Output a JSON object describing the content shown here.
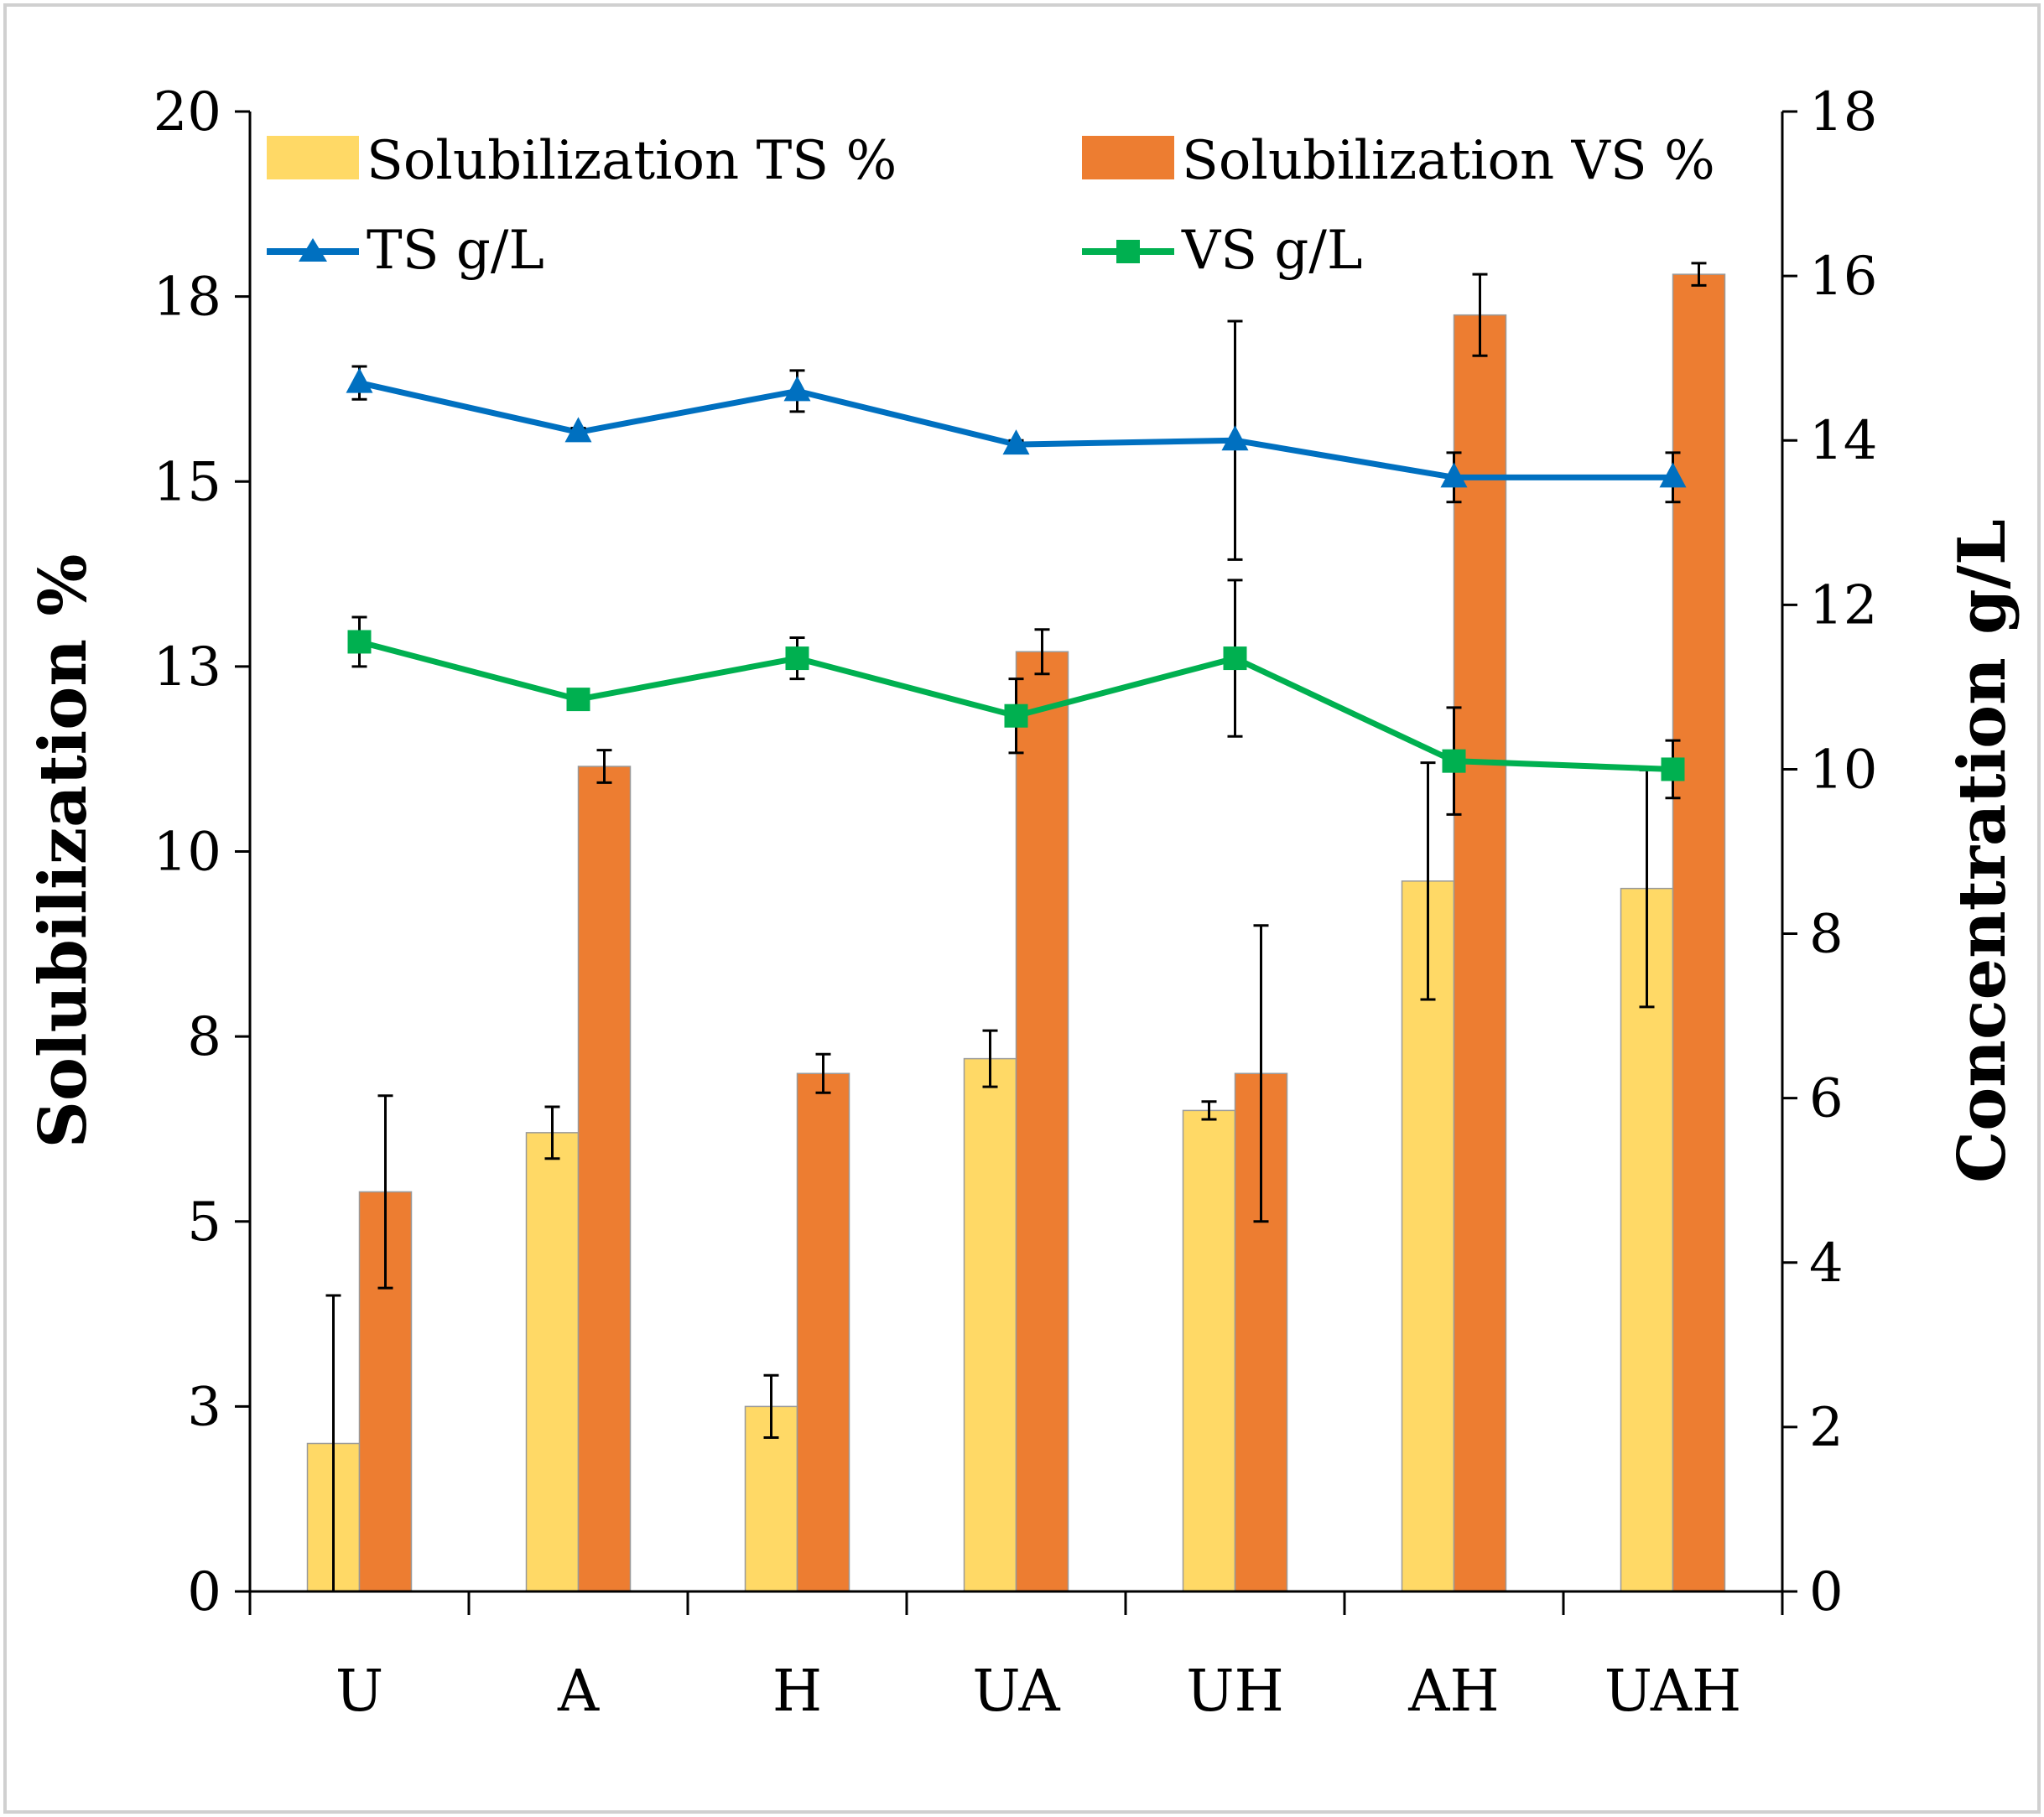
{
  "chart_data": {
    "type": "bar",
    "categories": [
      "U",
      "A",
      "H",
      "UA",
      "UH",
      "AH",
      "UAH"
    ],
    "y_left": {
      "label": "Solubilization %",
      "range": [
        0,
        20
      ],
      "tick_values": [
        0,
        2.5,
        5,
        7.5,
        10,
        12.5,
        15,
        17.5,
        20
      ],
      "tick_labels": [
        "0",
        "3",
        "5",
        "8",
        "10",
        "13",
        "15",
        "18",
        "20"
      ]
    },
    "y_right": {
      "label": "Concentration g/L",
      "range": [
        0,
        18
      ],
      "tick_values": [
        0,
        2,
        4,
        6,
        8,
        10,
        12,
        14,
        16,
        18
      ],
      "tick_labels": [
        "0",
        "2",
        "4",
        "6",
        "8",
        "10",
        "12",
        "14",
        "16",
        "18"
      ]
    },
    "grid": false,
    "legend_position": "top",
    "bar_series": [
      {
        "name": "Solubilization TS %",
        "color": "#FFD966",
        "values": [
          2.0,
          6.2,
          2.5,
          7.2,
          6.5,
          9.6,
          9.5
        ],
        "errors": [
          2.0,
          0.35,
          0.42,
          0.38,
          0.12,
          1.6,
          1.6
        ]
      },
      {
        "name": "Solubilization VS %",
        "color": "#ED7D31",
        "values": [
          5.4,
          11.15,
          7.0,
          12.7,
          7.0,
          17.25,
          17.8
        ],
        "errors": [
          1.3,
          0.22,
          0.26,
          0.3,
          2.0,
          0.55,
          0.15
        ]
      }
    ],
    "line_series": [
      {
        "name": "TS g/L",
        "color": "#0070C0",
        "marker": "triangle",
        "axis": "right",
        "values": [
          14.7,
          14.1,
          14.6,
          13.95,
          14.0,
          13.55,
          13.55
        ],
        "errors": [
          0.2,
          0.05,
          0.25,
          0.05,
          1.45,
          0.3,
          0.3
        ]
      },
      {
        "name": "VS g/L",
        "color": "#00B050",
        "marker": "square",
        "axis": "right",
        "values": [
          11.55,
          10.85,
          11.35,
          10.65,
          11.35,
          10.1,
          10.0
        ],
        "errors": [
          0.3,
          0.05,
          0.25,
          0.45,
          0.95,
          0.65,
          0.35
        ]
      }
    ]
  }
}
